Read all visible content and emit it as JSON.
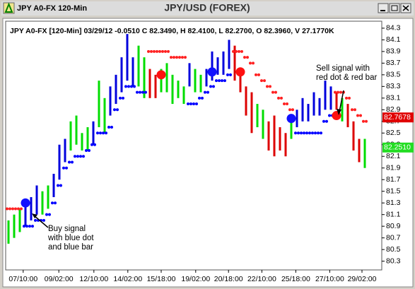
{
  "window": {
    "caption": "JPY A0-FX 120-Min"
  },
  "chart_data": {
    "type": "ohlc",
    "title": "JPY/USD (FOREX)",
    "header": "JPY A0-FX [120-Min] 03/29/12  -0.0510 C 82.3490, H 82.4100, L 82.2700, O 82.3960, V 27.1770K",
    "high": [
      81.0,
      81.1,
      81.2,
      81.3,
      81.4,
      81.6,
      81.5,
      81.6,
      81.8,
      82.3,
      82.4,
      82.7,
      82.8,
      82.5,
      82.6,
      82.7,
      83.4,
      83.1,
      83.3,
      83.5,
      83.8,
      84.2,
      83.8,
      84.0,
      83.8,
      83.6,
      83.5,
      83.6,
      83.7,
      83.5,
      83.4,
      83.3,
      83.7,
      83.6,
      83.5,
      83.6,
      83.9,
      83.8,
      83.9,
      84.1,
      84.0,
      83.6,
      83.3,
      83.2,
      83.0,
      82.9,
      82.7,
      82.8,
      82.6,
      82.5,
      82.8,
      82.9,
      83.1,
      83.0,
      83.2,
      83.1,
      83.4,
      83.3,
      83.2,
      83.1,
      83.0,
      82.7,
      82.4,
      82.4
    ],
    "low": [
      80.6,
      80.7,
      80.8,
      80.9,
      81.0,
      81.1,
      81.1,
      81.2,
      81.4,
      81.7,
      82.0,
      82.2,
      82.3,
      82.2,
      82.2,
      82.3,
      82.6,
      82.5,
      82.8,
      83.0,
      83.2,
      83.4,
      83.3,
      83.3,
      83.1,
      83.1,
      83.1,
      83.2,
      83.2,
      83.0,
      83.1,
      83.0,
      83.3,
      83.2,
      83.2,
      83.3,
      83.4,
      83.5,
      83.5,
      83.6,
      83.4,
      83.2,
      82.8,
      82.5,
      82.6,
      82.4,
      82.2,
      82.1,
      82.2,
      82.1,
      82.4,
      82.6,
      82.7,
      82.7,
      82.8,
      82.8,
      82.9,
      82.9,
      82.9,
      82.7,
      82.6,
      82.2,
      82.0,
      81.9
    ],
    "colors": [
      "#00dd00",
      "#00dd00",
      "#00dd00",
      "#0000dd",
      "#0000dd",
      "#0000dd",
      "#00dd00",
      "#00dd00",
      "#0000dd",
      "#0000dd",
      "#0000dd",
      "#00dd00",
      "#00dd00",
      "#00dd00",
      "#00dd00",
      "#0000dd",
      "#00dd00",
      "#00dd00",
      "#0000dd",
      "#0000dd",
      "#0000dd",
      "#0000dd",
      "#0000dd",
      "#00dd00",
      "#00dd00",
      "#dd0000",
      "#dd0000",
      "#00dd00",
      "#00dd00",
      "#00dd00",
      "#00dd00",
      "#00dd00",
      "#0000dd",
      "#00dd00",
      "#00dd00",
      "#0000dd",
      "#0000dd",
      "#0000dd",
      "#0000dd",
      "#0000dd",
      "#dd0000",
      "#dd0000",
      "#dd0000",
      "#dd0000",
      "#00dd00",
      "#00dd00",
      "#dd0000",
      "#dd0000",
      "#dd0000",
      "#dd0000",
      "#00dd00",
      "#0000dd",
      "#0000dd",
      "#0000dd",
      "#0000dd",
      "#0000dd",
      "#0000dd",
      "#0000dd",
      "#dd0000",
      "#00dd00",
      "#dd0000",
      "#dd0000",
      "#dd0000",
      "#00dd00"
    ],
    "stop_dots": {
      "values": [
        81.2,
        81.2,
        81.2,
        80.9,
        80.9,
        81.0,
        81.0,
        81.1,
        81.3,
        81.6,
        81.9,
        82.0,
        82.1,
        82.1,
        82.2,
        82.3,
        82.5,
        82.5,
        82.6,
        82.9,
        83.1,
        83.3,
        83.3,
        83.2,
        83.2,
        83.9,
        83.9,
        83.9,
        83.9,
        83.8,
        83.8,
        83.8,
        83.0,
        83.0,
        83.1,
        83.2,
        83.3,
        83.4,
        83.4,
        83.5,
        83.9,
        83.9,
        83.8,
        83.7,
        83.5,
        83.4,
        83.3,
        83.2,
        83.1,
        83.0,
        82.9,
        82.5,
        82.5,
        82.5,
        82.5,
        82.5,
        82.7,
        82.8,
        83.2,
        83.2,
        83.1,
        82.9,
        82.8,
        82.7
      ],
      "colors": [
        "#ff2020",
        "#ff2020",
        "#ff2020",
        "#0000ff",
        "#0000ff",
        "#0000ff",
        "#0000ff",
        "#0000ff",
        "#0000ff",
        "#0000ff",
        "#0000ff",
        "#0000ff",
        "#0000ff",
        "#0000ff",
        "#0000ff",
        "#0000ff",
        "#0000ff",
        "#0000ff",
        "#0000ff",
        "#0000ff",
        "#0000ff",
        "#0000ff",
        "#0000ff",
        "#0000ff",
        "#0000ff",
        "#ff2020",
        "#ff2020",
        "#ff2020",
        "#ff2020",
        "#ff2020",
        "#ff2020",
        "#ff2020",
        "#0000ff",
        "#0000ff",
        "#0000ff",
        "#0000ff",
        "#0000ff",
        "#0000ff",
        "#0000ff",
        "#0000ff",
        "#ff2020",
        "#ff2020",
        "#ff2020",
        "#ff2020",
        "#ff2020",
        "#ff2020",
        "#ff2020",
        "#ff2020",
        "#ff2020",
        "#ff2020",
        "#ff2020",
        "#0000ff",
        "#0000ff",
        "#0000ff",
        "#0000ff",
        "#0000ff",
        "#0000ff",
        "#0000ff",
        "#ff2020",
        "#ff2020",
        "#ff2020",
        "#ff2020",
        "#ff2020",
        "#ff2020"
      ]
    },
    "signals": {
      "x": [
        3,
        27,
        36,
        41,
        50,
        58
      ],
      "values": [
        81.3,
        83.5,
        83.55,
        83.55,
        82.75,
        82.8
      ],
      "colors": [
        "#1010ff",
        "#ff1010",
        "#1010ff",
        "#ff1010",
        "#1010ff",
        "#ff1010"
      ]
    },
    "price_labels": [
      {
        "value": 82.7678,
        "label": "82.7678",
        "color": "#e00000"
      },
      {
        "value": 82.251,
        "label": "82.2510",
        "color": "#22dd22"
      }
    ],
    "annotations": [
      {
        "lines": [
          "Buy signal",
          "with blue dot",
          "and blue bar"
        ]
      },
      {
        "lines": [
          "Sell signal with",
          "red dot & red bar"
        ]
      }
    ],
    "xlim": [
      -0.5,
      66
    ],
    "xticks": [
      {
        "value": 2.6,
        "label": "07/10:00"
      },
      {
        "value": 8.9,
        "label": "09/02:00"
      },
      {
        "value": 15.1,
        "label": "12/10:00"
      },
      {
        "value": 21.1,
        "label": "14/02:00"
      },
      {
        "value": 27,
        "label": "15/18:00"
      },
      {
        "value": 33.1,
        "label": "19/02:00"
      },
      {
        "value": 38.9,
        "label": "20/18:00"
      },
      {
        "value": 44.8,
        "label": "22/10:00"
      },
      {
        "value": 50.8,
        "label": "25/18:00"
      },
      {
        "value": 56.8,
        "label": "27/10:00"
      },
      {
        "value": 62.5,
        "label": "29/02:00"
      }
    ],
    "ylim": [
      80.15,
      84.42
    ],
    "yticks": [
      80.3,
      80.5,
      80.7,
      80.9,
      81.1,
      81.3,
      81.5,
      81.7,
      81.9,
      82.1,
      82.3,
      82.5,
      82.7,
      82.9,
      83.1,
      83.3,
      83.5,
      83.7,
      83.9,
      84.1,
      84.3
    ]
  }
}
